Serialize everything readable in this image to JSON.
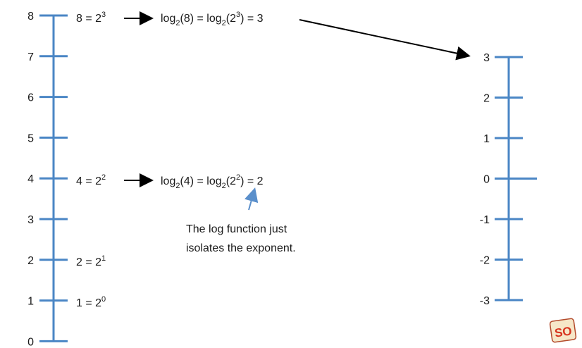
{
  "left_scale": {
    "ticks": [
      "0",
      "1",
      "2",
      "3",
      "4",
      "5",
      "6",
      "7",
      "8"
    ]
  },
  "right_scale": {
    "ticks": [
      "-3",
      "-2",
      "-1",
      "0",
      "1",
      "2",
      "3"
    ]
  },
  "equations": {
    "eq8": {
      "lhs": "8 = 2",
      "exp": "3"
    },
    "eq4": {
      "lhs": "4 = 2",
      "exp": "2"
    },
    "eq2": {
      "lhs": "2 = 2",
      "exp": "1"
    },
    "eq1": {
      "lhs": "1 = 2",
      "exp": "0"
    }
  },
  "log_expressions": {
    "log8": {
      "a": "log",
      "b": "2",
      "c": "(8) = log",
      "d": "2",
      "e": "(2",
      "f": "3",
      "g": ") = 3"
    },
    "log4": {
      "a": "log",
      "b": "2",
      "c": "(4) = log",
      "d": "2",
      "e": "(2",
      "f": "2",
      "g": ") = 2"
    }
  },
  "note": {
    "line1": "The log function just",
    "line2": "isolates the exponent."
  },
  "colors": {
    "axis": "#4a86c5",
    "arrow": "#000000",
    "pointer": "#5a8fcb"
  },
  "logo": {
    "icon": "so-logo-icon",
    "text": "SO"
  }
}
